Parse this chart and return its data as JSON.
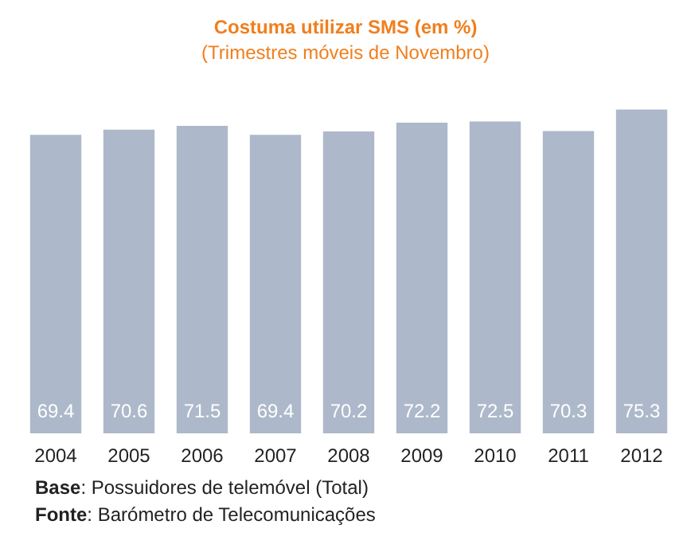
{
  "chart_data": {
    "type": "bar",
    "title": "Costuma utilizar SMS (em %)",
    "subtitle": "(Trimestres móveis de Novembro)",
    "categories": [
      "2004",
      "2005",
      "2006",
      "2007",
      "2008",
      "2009",
      "2010",
      "2011",
      "2012"
    ],
    "values": [
      69.4,
      70.6,
      71.5,
      69.4,
      70.2,
      72.2,
      72.5,
      70.3,
      75.3
    ],
    "color": "#adb9ca",
    "data_labels": true,
    "annotations": [
      "Base: Possuidores de telemóvel (Total)",
      "Fonte: Barómetro de Telecomunicações"
    ]
  }
}
